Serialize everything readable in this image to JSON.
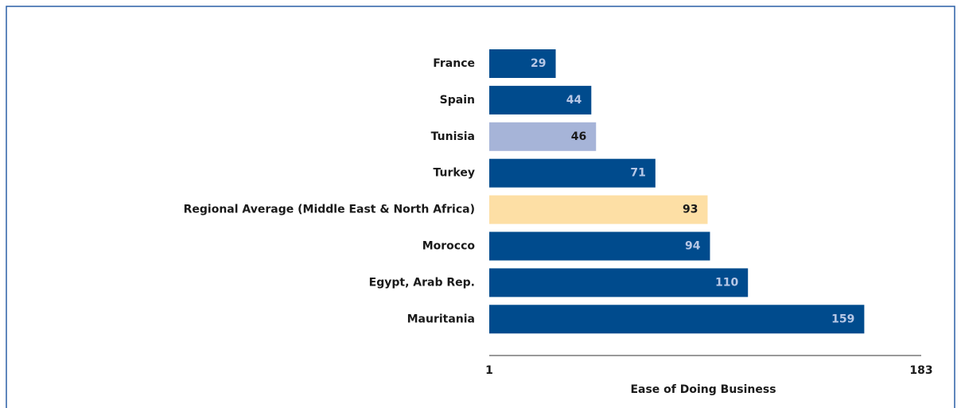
{
  "chart_data": {
    "type": "barh",
    "categories": [
      "France",
      "Spain",
      "Tunisia",
      "Turkey",
      "Regional Average (Middle East & North Africa)",
      "Morocco",
      "Egypt, Arab Rep.",
      "Mauritania"
    ],
    "values": [
      29,
      44,
      46,
      71,
      93,
      94,
      110,
      159
    ],
    "colors": [
      "#004b8d",
      "#004b8d",
      "#a6b4d8",
      "#004b8d",
      "#fddfa5",
      "#004b8d",
      "#004b8d",
      "#004b8d"
    ],
    "xlim": [
      1,
      183
    ],
    "xticks": [
      1,
      183
    ],
    "xlabel": "Ease of Doing Business"
  }
}
